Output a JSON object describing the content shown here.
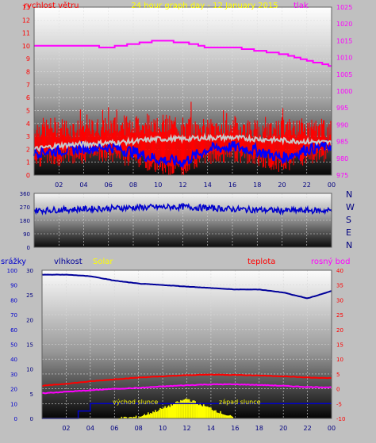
{
  "colors": {
    "background": "#c0c0c0",
    "wind": "#ff0000",
    "wind_gust_avg": "#c8c8c8",
    "wind_avg": "#0000ff",
    "pressure": "#ff00ff",
    "direction": "#0000cc",
    "humidity": "#000099",
    "temperature": "#ff0000",
    "dewpoint": "#ff00ff",
    "solar": "#ffff00",
    "rain": "#0000cc",
    "title": "#ffff00",
    "axis_left_top": "#ff0000",
    "axis_right_top": "#ff00ff",
    "axis_right_bottom": "#ff0000",
    "axis_left_bottom": "#0000cc"
  },
  "chart_data": [
    {
      "id": "wind-pressure",
      "type": "line",
      "title": "24 hour graph day - 12 January 2015",
      "ylabel": "rychlost větru",
      "y2label": "tlak",
      "x_ticks": [
        "02",
        "04",
        "06",
        "08",
        "10",
        "12",
        "14",
        "16",
        "18",
        "20",
        "22",
        "00"
      ],
      "ylim": [
        0,
        13
      ],
      "y_ticks": [
        0,
        1,
        2,
        3,
        4,
        5,
        6,
        7,
        8,
        9,
        10,
        11,
        12,
        13
      ],
      "y2lim": [
        975,
        1025
      ],
      "y2_ticks": [
        975,
        980,
        985,
        990,
        995,
        1000,
        1005,
        1010,
        1015,
        1020,
        1025
      ],
      "hours": [
        0,
        2,
        4,
        6,
        8,
        10,
        12,
        14,
        16,
        18,
        20,
        22,
        24
      ],
      "series": [
        {
          "key": "gust",
          "values": [
            3.3,
            3.4,
            3.2,
            3.5,
            3.6,
            3.7,
            3.4,
            3.3,
            3.5,
            3.2,
            3.4,
            3.3,
            3.2
          ]
        },
        {
          "key": "avg_light",
          "values": [
            2.0,
            2.3,
            2.4,
            2.5,
            2.6,
            2.8,
            2.8,
            2.9,
            2.9,
            2.8,
            2.7,
            2.6,
            2.5
          ]
        },
        {
          "key": "avg_dark",
          "values": [
            1.8,
            1.9,
            2.1,
            2.2,
            1.8,
            1.2,
            1.0,
            2.0,
            2.2,
            1.9,
            1.3,
            2.0,
            2.3
          ]
        },
        {
          "key": "pressure",
          "values": [
            1013.5,
            1013.5,
            1013.5,
            1013,
            1014,
            1015,
            1014.5,
            1013,
            1013,
            1012,
            1011,
            1009,
            1007.5
          ]
        }
      ]
    },
    {
      "id": "wind-direction",
      "type": "scatter",
      "ylim": [
        0,
        360
      ],
      "y_ticks": [
        0,
        90,
        180,
        270,
        360
      ],
      "y_tick_labels": [
        "0",
        "90",
        "180",
        "270",
        "360"
      ],
      "compass_labels": [
        "N",
        "W",
        "S",
        "E",
        "N"
      ],
      "hours": [
        0,
        4,
        8,
        12,
        16,
        20,
        24
      ],
      "series": [
        {
          "key": "direction",
          "values": [
            245,
            255,
            265,
            270,
            255,
            245,
            245
          ]
        }
      ]
    },
    {
      "id": "climate",
      "type": "line",
      "labels": {
        "rain": "srážky",
        "humidity": "vlhkost",
        "solar": "Solar",
        "temperature": "teplota",
        "dewpoint": "rosný bod"
      },
      "annotations": {
        "sunrise": "východ slunce",
        "sunset": "západ slunce"
      },
      "x_ticks": [
        "02",
        "04",
        "06",
        "08",
        "10",
        "12",
        "14",
        "16",
        "18",
        "20",
        "22",
        "00"
      ],
      "left_ticks": [
        0,
        5,
        10,
        15,
        20,
        25,
        30
      ],
      "humidity_ticks": [
        0,
        10,
        20,
        30,
        40,
        50,
        60,
        70,
        80,
        90,
        100
      ],
      "right_ticks": [
        -10,
        -5,
        0,
        5,
        10,
        15,
        20,
        25,
        30,
        35,
        40
      ],
      "rain_lim": [
        0,
        30
      ],
      "humidity_lim": [
        0,
        100
      ],
      "temp_lim": [
        -10,
        40
      ],
      "hours": [
        0,
        2,
        4,
        6,
        8,
        10,
        12,
        14,
        16,
        18,
        20,
        22,
        24
      ],
      "series": [
        {
          "key": "humidity",
          "values": [
            97,
            97,
            96,
            93,
            91,
            90,
            89,
            88,
            87,
            87,
            85,
            81,
            86
          ]
        },
        {
          "key": "temperature",
          "values": [
            1.0,
            1.7,
            2.5,
            3.2,
            3.8,
            4.2,
            4.6,
            4.8,
            4.7,
            4.5,
            4.2,
            3.8,
            3.6
          ]
        },
        {
          "key": "dewpoint",
          "values": [
            -1.5,
            -1.0,
            -0.5,
            0.0,
            0.3,
            0.8,
            1.2,
            1.5,
            1.5,
            1.3,
            1.0,
            0.6,
            0.5
          ]
        },
        {
          "key": "solar",
          "values": [
            0,
            0,
            0,
            0,
            0.3,
            2,
            4,
            2,
            0,
            0,
            0,
            0,
            0
          ]
        },
        {
          "key": "rain",
          "values": [
            0,
            0,
            3,
            3,
            3,
            3,
            3,
            3,
            3,
            3,
            3,
            3,
            3
          ]
        }
      ]
    }
  ]
}
